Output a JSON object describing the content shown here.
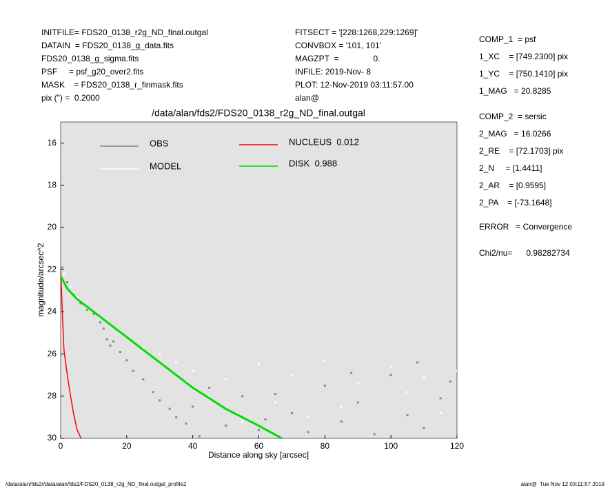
{
  "header": {
    "left": [
      "INITFILE= FDS20_0138_r2g_ND_final.outgal",
      "DATAIN  = FDS20_0138_g_data.fits",
      "FDS20_0138_g_sigma.fits",
      "PSF     = psf_g20_over2.fits",
      "MASK    = FDS20_0138_r_finmask.fits",
      "pix (\") =  0.2000"
    ],
    "middle": [
      "FITSECT = '[228:1268,229:1269]'",
      "CONVBOX = '101, 101'",
      "MAGZPT  =               0.",
      "INFILE: 2019-Nov- 8",
      "PLOT: 12-Nov-2019 03:11:57.00",
      "alan@"
    ],
    "right": [
      "COMP_1  = psf",
      "1_XC    = [749.2300] pix",
      "1_YC    = [750.1410] pix",
      "1_MAG   = 20.8285",
      "COMP_2  = sersic",
      "2_MAG   = 16.0266",
      "2_RE    = [72.1703] pix",
      "2_N     = [1.4411]",
      "2_AR    = [0.9595]",
      "2_PA    = [-73.1648]",
      "ERROR   = Convergence",
      "Chi2/nu=      0.98282734"
    ]
  },
  "footer": {
    "left": "/data/alan/fds2//data/alan/fds2/FDS20_0138_r2g_ND_final.outgal_profile2",
    "right": "alan@  Tue Nov 12 03:11:57 2019"
  },
  "chart_data": {
    "type": "scatter",
    "title": "/data/alan/fds2/FDS20_0138_r2g_ND_final.outgal",
    "x_label": "Distance along sky [arcsec]",
    "y_label": "magnitude/arcsec^2",
    "xlim": [
      0,
      120
    ],
    "xticks": [
      0,
      20,
      40,
      60,
      80,
      100,
      120
    ],
    "ylim": [
      30,
      15
    ],
    "yticks": [
      16,
      18,
      20,
      22,
      24,
      26,
      28,
      30
    ],
    "background": "#e3e3e3",
    "series": [
      {
        "name": "MODEL",
        "color": "#ffffff",
        "style": "points",
        "x": [
          1,
          3,
          5,
          8,
          12,
          18,
          25,
          30,
          35,
          40,
          50,
          60,
          70,
          80,
          90,
          100,
          110,
          120,
          45,
          65,
          85,
          105,
          115,
          55,
          75
        ],
        "values": [
          22.2,
          22.8,
          23.3,
          23.8,
          24.3,
          25,
          25.7,
          26,
          26.4,
          26.8,
          27.2,
          26.5,
          27,
          26.3,
          27.4,
          26.6,
          27.1,
          26.8,
          28,
          28.3,
          28.5,
          27.8,
          28.8,
          29.2,
          29
        ]
      },
      {
        "name": "OBS",
        "color": "#888888",
        "style": "points",
        "x": [
          0.5,
          2,
          4,
          6,
          8,
          10,
          12,
          13,
          14,
          15,
          16,
          18,
          20,
          22,
          25,
          28,
          30,
          33,
          35,
          38,
          40,
          45,
          50,
          55,
          60,
          65,
          70,
          75,
          80,
          85,
          90,
          95,
          100,
          105,
          110,
          115,
          118,
          120,
          42,
          62,
          88,
          108
        ],
        "values": [
          21.9,
          22.6,
          23.2,
          23.6,
          23.9,
          24.1,
          24.5,
          24.8,
          25.3,
          25.6,
          25.4,
          25.9,
          26.3,
          26.8,
          27.2,
          27.8,
          28.2,
          28.6,
          29,
          29.3,
          28.5,
          27.6,
          29.4,
          28,
          29.6,
          27.9,
          28.8,
          29.7,
          27.5,
          29.2,
          28.3,
          29.8,
          27,
          28.9,
          29.5,
          28.1,
          27.3,
          29.9,
          29.9,
          29.1,
          26.9,
          26.4
        ]
      },
      {
        "name": "NUCLEUS  0.012",
        "color": "#ff0000",
        "style": "line",
        "x": [
          0,
          0.5,
          1,
          2,
          3,
          4,
          5,
          6.2
        ],
        "values": [
          21.9,
          24,
          25.8,
          27,
          28,
          28.9,
          29.6,
          30
        ]
      },
      {
        "name": "DISK  0.988",
        "color": "#00dd00",
        "style": "line",
        "x": [
          0,
          2,
          5,
          10,
          15,
          20,
          30,
          40,
          50,
          60,
          67
        ],
        "values": [
          22.3,
          22.9,
          23.4,
          24,
          24.6,
          25.2,
          26.4,
          27.6,
          28.6,
          29.4,
          30
        ]
      }
    ]
  }
}
